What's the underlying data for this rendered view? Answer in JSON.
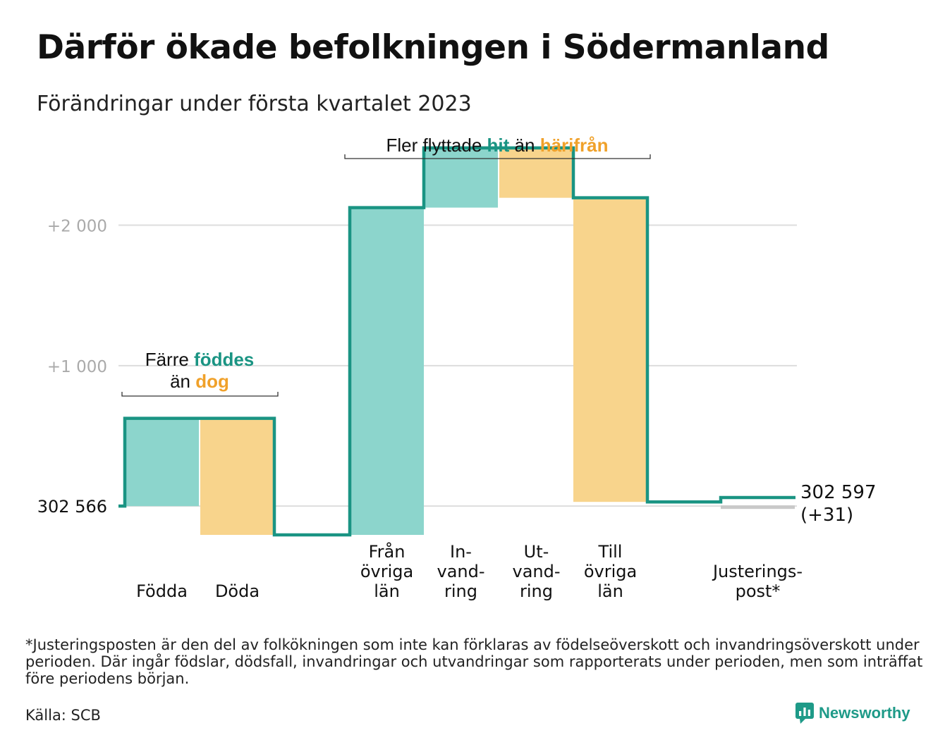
{
  "title": "Därför ökade befolkningen i Södermanland",
  "subtitle": "Förändringar under första kvartalet 2023",
  "footnote": "*Justeringsposten är den del av folkökningen som inte kan förklaras av födelseöverskott och invandringsöverskott under perioden. Där ingår födslar, dödsfall, invandringar och utvandringar som rapporterats under perioden, men som inträffat före periodens början.",
  "source": "Källa: SCB",
  "brand": "Newsworthy",
  "colors": {
    "increase": "#8cd5cc",
    "decrease": "#f8d48c",
    "adjustment": "#c9c9c9",
    "line": "#1a9483",
    "highlight_teal": "#1a9483",
    "highlight_orange": "#f0a12a",
    "gridline": "#dddddd",
    "tick_text": "#aaaaaa"
  },
  "chart_data": {
    "type": "waterfall",
    "start_value": 302566,
    "start_label": "302 566",
    "end_value": 302597,
    "end_label": "302 597",
    "end_change_label": "(+31)",
    "y_ticks": [
      {
        "value": 1000,
        "label": "+1 000"
      },
      {
        "value": 2000,
        "label": "+2 000"
      }
    ],
    "ylim": [
      -250,
      2700
    ],
    "grid": true,
    "steps": [
      {
        "key": "fodda",
        "label": [
          "Födda"
        ],
        "value": 625,
        "kind": "increase"
      },
      {
        "key": "doda",
        "label": [
          "Döda"
        ],
        "value": -830,
        "kind": "decrease"
      },
      {
        "key": "fran_ovriga_lan",
        "label": [
          "Från",
          "övriga",
          "län"
        ],
        "value": 2330,
        "kind": "increase"
      },
      {
        "key": "invandring",
        "label": [
          "In-",
          "vand-",
          "ring"
        ],
        "value": 425,
        "kind": "increase"
      },
      {
        "key": "utvandring",
        "label": [
          "Ut-",
          "vand-",
          "ring"
        ],
        "value": -355,
        "kind": "decrease"
      },
      {
        "key": "till_ovriga_lan",
        "label": [
          "Till",
          "övriga",
          "län"
        ],
        "value": -2165,
        "kind": "decrease"
      },
      {
        "key": "justeringspost",
        "label": [
          "Justerings-",
          "post*"
        ],
        "value": 0,
        "kind": "adjustment"
      }
    ],
    "annotations": [
      {
        "key": "births",
        "parts": [
          {
            "text": "Färre ",
            "color": "#111111"
          },
          {
            "text": "föddes",
            "color": "#1a9483"
          },
          {
            "text": "än ",
            "color": "#111111"
          },
          {
            "text": "dog",
            "color": "#f0a12a"
          }
        ]
      },
      {
        "key": "moves",
        "parts": [
          {
            "text": "Fler flyttade ",
            "color": "#111111"
          },
          {
            "text": "hit",
            "color": "#1a9483"
          },
          {
            "text": " än ",
            "color": "#111111"
          },
          {
            "text": "härifrån",
            "color": "#f0a12a"
          }
        ]
      }
    ]
  }
}
